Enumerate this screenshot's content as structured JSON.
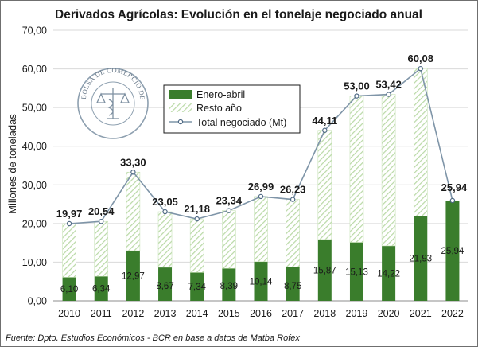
{
  "chart_data": {
    "type": "bar",
    "title": "Derivados Agrícolas: Evolución en el tonelaje negociado anual",
    "ylabel": "Millones de toneladas",
    "xlabel": "",
    "ylim": [
      0,
      70
    ],
    "ytick_step": 10,
    "ytick_labels": [
      "0,00",
      "10,00",
      "20,00",
      "30,00",
      "40,00",
      "50,00",
      "60,00",
      "70,00"
    ],
    "grid": true,
    "legend_position": "upper-left",
    "categories": [
      "2010",
      "2011",
      "2012",
      "2013",
      "2014",
      "2015",
      "2016",
      "2017",
      "2018",
      "2019",
      "2020",
      "2021",
      "2022"
    ],
    "series": [
      {
        "name": "Enero-abril",
        "kind": "stacked-bar",
        "color": "#3a7d2c",
        "values": [
          6.1,
          6.34,
          12.97,
          8.67,
          7.34,
          8.39,
          10.14,
          8.75,
          15.87,
          15.13,
          14.22,
          21.93,
          25.94
        ],
        "labels": [
          "6,10",
          "6,34",
          "12,97",
          "8,67",
          "7,34",
          "8,39",
          "10,14",
          "8,75",
          "15,87",
          "15,13",
          "14,22",
          "21,93",
          "25,94"
        ]
      },
      {
        "name": "Resto año",
        "kind": "stacked-bar-hatched",
        "color": "#b9d9a6",
        "values": [
          13.87,
          14.2,
          20.33,
          14.38,
          13.84,
          14.95,
          16.85,
          17.48,
          28.24,
          37.87,
          39.2,
          38.15,
          0.0
        ]
      },
      {
        "name": "Total negociado (Mt)",
        "kind": "line",
        "color": "#7f95a8",
        "values": [
          19.97,
          20.54,
          33.3,
          23.05,
          21.18,
          23.34,
          26.99,
          26.23,
          44.11,
          53.0,
          53.42,
          60.08,
          25.94
        ],
        "labels": [
          "19,97",
          "20,54",
          "33,30",
          "23,05",
          "21,18",
          "23,34",
          "26,99",
          "26,23",
          "44,11",
          "53,00",
          "53,42",
          "60,08",
          "25,94"
        ]
      }
    ]
  },
  "source_note": "Fuente: Dpto. Estudios Económicos - BCR en base a datos de Matba Rofex",
  "seal": {
    "text": "BOLSA DE COMERCIO DE ROSARIO"
  }
}
